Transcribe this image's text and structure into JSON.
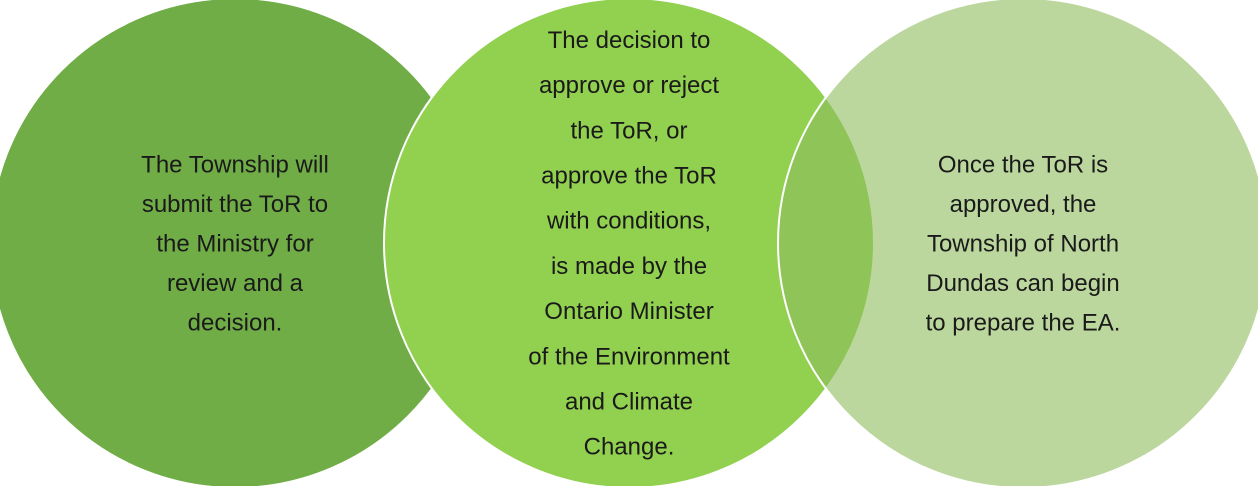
{
  "nodes": [
    {
      "lines": [
        "The Township will",
        "submit the ToR to",
        "the Ministry for",
        "review and a",
        "decision."
      ]
    },
    {
      "lines": [
        "The decision to",
        "approve or reject",
        "the ToR, or",
        "approve the ToR",
        "with conditions,",
        "is made by the",
        "Ontario Minister",
        "of the Environment",
        "and Climate",
        "Change."
      ]
    },
    {
      "lines": [
        "Once the ToR is",
        "approved, the",
        "Township of North",
        "Dundas can begin",
        "to prepare the EA."
      ]
    }
  ]
}
